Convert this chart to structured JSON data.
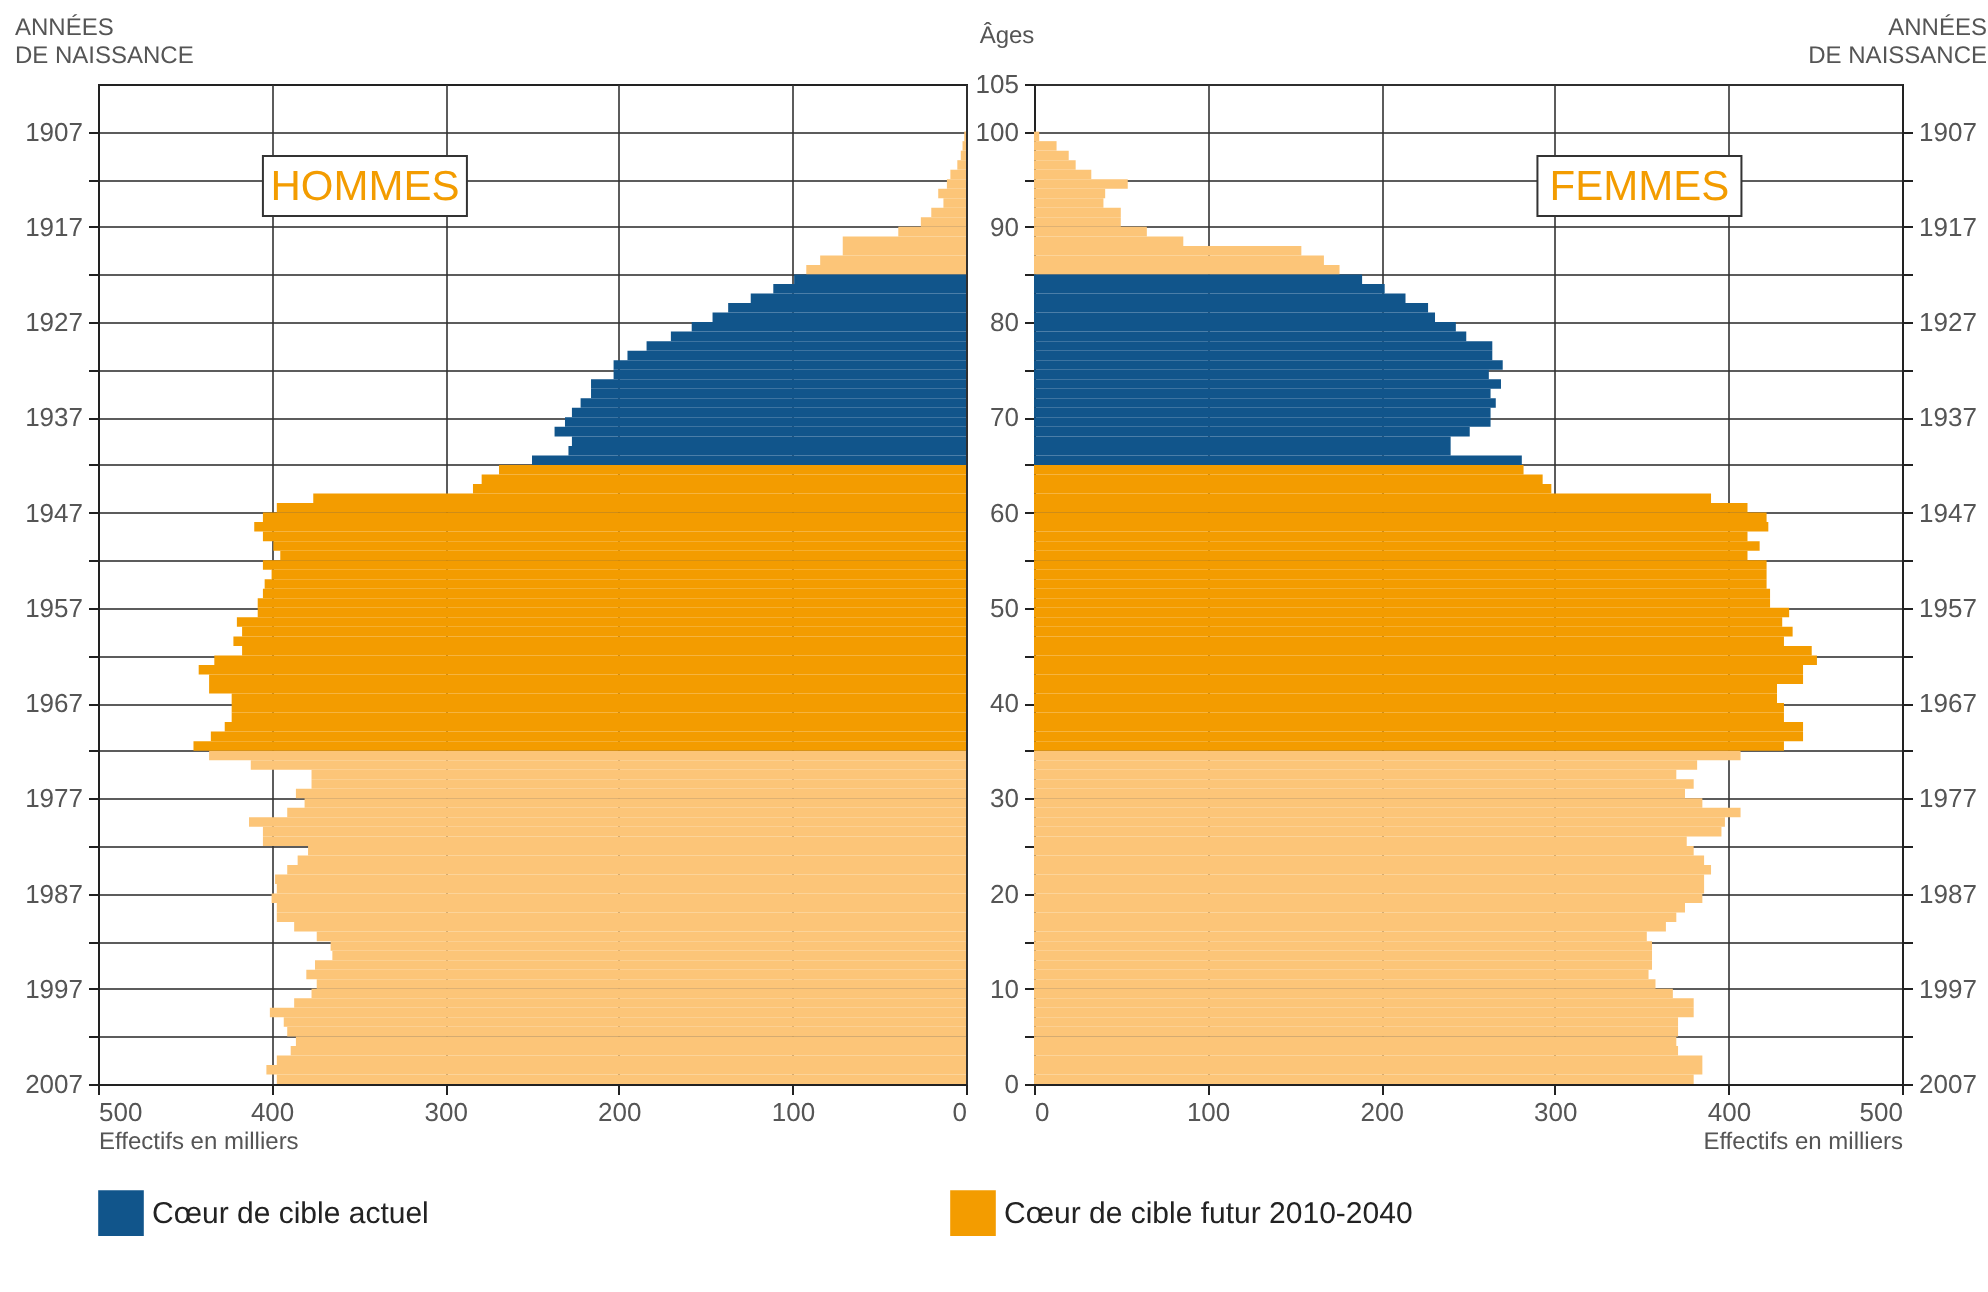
{
  "chart_data": [
    {
      "type": "bar",
      "orientation": "horizontal",
      "annotations": [
        "HOMMES"
      ],
      "xlabel": "Effectifs en milliers",
      "ylabel": "ANNÉES DE NAISSANCE",
      "xlim": [
        500,
        0
      ],
      "xticks": [
        500,
        400,
        300,
        200,
        100,
        0
      ],
      "ylim": [
        2007,
        1902
      ],
      "yticks": [
        2007,
        {
          "value": 2002,
          "label": null
        },
        1997,
        {
          "value": 1992,
          "label": null
        },
        1987,
        {
          "value": 1982,
          "label": null
        },
        1977,
        {
          "value": 1972,
          "label": null
        },
        1967,
        {
          "value": 1962,
          "label": null
        },
        1957,
        {
          "value": 1952,
          "label": null
        },
        1947,
        {
          "value": 1942,
          "label": null
        },
        1937,
        {
          "value": 1932,
          "label": null
        },
        1927,
        {
          "value": 1922,
          "label": null
        },
        1917,
        {
          "value": 1912,
          "label": null
        },
        1907
      ],
      "grid": true,
      "legend": "bottom",
      "x": [
        2006.5,
        2005.5,
        2004.5,
        2003.5,
        2002.5,
        2001.5,
        2000.5,
        1999.5,
        1998.5,
        1997.5,
        1996.5,
        1995.5,
        1994.5,
        1993.5,
        1992.5,
        1991.5,
        1990.5,
        1989.5,
        1988.5,
        1987.5,
        1986.5,
        1985.5,
        1984.5,
        1983.5,
        1982.5,
        1981.5,
        1980.5,
        1979.5,
        1978.5,
        1977.5,
        1976.5,
        1975.5,
        1974.5,
        1973.5,
        1972.5,
        1971.5,
        1970.5,
        1969.5,
        1968.5,
        1967.5,
        1966.5,
        1965.5,
        1964.5,
        1963.5,
        1962.5,
        1961.5,
        1960.5,
        1959.5,
        1958.5,
        1957.5,
        1956.5,
        1955.5,
        1954.5,
        1953.5,
        1952.5,
        1951.5,
        1950.5,
        1949.5,
        1948.5,
        1947.5,
        1946.5,
        1945.5,
        1944.5,
        1943.5,
        1942.5,
        1941.5,
        1940.5,
        1939.5,
        1938.5,
        1937.5,
        1936.5,
        1935.5,
        1934.5,
        1933.5,
        1932.5,
        1931.5,
        1930.5,
        1929.5,
        1928.5,
        1927.5,
        1926.5,
        1925.5,
        1924.5,
        1923.5,
        1922.5,
        1921.5,
        1920.5,
        1919.5,
        1918.5,
        1917.5,
        1916.5,
        1915.5,
        1914.5,
        1913.5,
        1912.5,
        1911.5,
        1910.5,
        1909.5,
        1908.5,
        1907.5
      ],
      "series": [
        {
          "color": "#fcc578",
          "values": [
            397,
            403,
            397,
            389,
            386,
            391,
            393,
            401,
            387,
            377,
            374,
            380,
            375,
            365,
            366,
            374,
            387,
            397,
            397,
            400,
            397,
            398,
            391,
            385,
            379,
            405,
            405,
            413,
            391,
            381,
            386,
            377,
            377,
            412,
            436,
            null,
            null,
            null,
            null,
            null,
            null,
            null,
            null,
            null,
            null,
            null,
            null,
            null,
            null,
            null,
            null,
            null,
            null,
            null,
            null,
            null,
            null,
            null,
            null,
            null,
            null,
            null,
            null,
            null,
            null,
            null,
            null,
            null,
            null,
            null,
            null,
            null,
            null,
            null,
            null,
            null,
            null,
            null,
            null,
            null,
            null,
            null,
            null,
            null,
            null,
            92,
            84,
            71,
            71,
            39,
            26,
            20,
            13,
            16,
            11,
            9,
            5,
            3,
            2,
            1
          ]
        },
        {
          "name": "Cœur de cible actuel",
          "color": "#11558b",
          "values": [
            null,
            null,
            null,
            null,
            null,
            null,
            null,
            null,
            null,
            null,
            null,
            null,
            null,
            null,
            null,
            null,
            null,
            null,
            null,
            null,
            null,
            null,
            null,
            null,
            null,
            null,
            null,
            null,
            null,
            null,
            null,
            null,
            null,
            null,
            null,
            null,
            null,
            null,
            null,
            null,
            null,
            null,
            null,
            null,
            null,
            null,
            null,
            null,
            null,
            null,
            null,
            null,
            null,
            null,
            null,
            null,
            null,
            null,
            null,
            null,
            null,
            null,
            null,
            null,
            null,
            250,
            229,
            227,
            237,
            231,
            227,
            222,
            216,
            216,
            203,
            203,
            195,
            184,
            170,
            158,
            146,
            137,
            124,
            111,
            99,
            null,
            null,
            null,
            null,
            null,
            null,
            null,
            null,
            null,
            null,
            null,
            null,
            null,
            null,
            null
          ]
        },
        {
          "name": "Cœur de cible futur 2010-2040",
          "color": "#f39c00",
          "values": [
            null,
            null,
            null,
            null,
            null,
            null,
            null,
            null,
            null,
            null,
            null,
            null,
            null,
            null,
            null,
            null,
            null,
            null,
            null,
            null,
            null,
            null,
            null,
            null,
            null,
            null,
            null,
            null,
            null,
            null,
            null,
            null,
            null,
            null,
            null,
            445,
            435,
            427,
            423,
            423,
            423,
            436,
            436,
            442,
            433,
            417,
            422,
            417,
            420,
            408,
            408,
            405,
            404,
            400,
            405,
            395,
            399,
            405,
            410,
            405,
            397,
            376,
            284,
            279,
            269,
            null,
            null,
            null,
            null,
            null,
            null,
            null,
            null,
            null,
            null,
            null,
            null,
            null,
            null,
            null,
            null,
            null,
            null,
            null,
            null,
            null,
            null,
            null,
            null,
            null,
            null,
            null,
            null,
            null,
            null,
            null,
            null,
            null,
            null,
            null
          ]
        }
      ]
    },
    {
      "type": "bar",
      "orientation": "horizontal",
      "annotations": [
        "FEMMES"
      ],
      "xlabel": "Effectifs en milliers",
      "ylabel": "Âges",
      "y2label": "ANNÉES DE NAISSANCE",
      "xlim": [
        0,
        500
      ],
      "xticks": [
        0,
        100,
        200,
        300,
        400,
        500
      ],
      "ylim": [
        0,
        105
      ],
      "yticks": [
        0,
        {
          "value": 5,
          "label": null
        },
        10,
        {
          "value": 15,
          "label": null
        },
        20,
        {
          "value": 25,
          "label": null
        },
        30,
        {
          "value": 35,
          "label": null
        },
        40,
        {
          "value": 45,
          "label": null
        },
        50,
        {
          "value": 55,
          "label": null
        },
        60,
        {
          "value": 65,
          "label": null
        },
        70,
        {
          "value": 75,
          "label": null
        },
        80,
        {
          "value": 85,
          "label": null
        },
        90,
        {
          "value": 95,
          "label": null
        },
        100,
        105
      ],
      "y2lim": [
        2007,
        1902
      ],
      "y2ticks": [
        2007,
        {
          "value": 2002,
          "label": null
        },
        1997,
        {
          "value": 1992,
          "label": null
        },
        1987,
        {
          "value": 1982,
          "label": null
        },
        1977,
        {
          "value": 1972,
          "label": null
        },
        1967,
        {
          "value": 1962,
          "label": null
        },
        1957,
        {
          "value": 1952,
          "label": null
        },
        1947,
        {
          "value": 1942,
          "label": null
        },
        1937,
        {
          "value": 1932,
          "label": null
        },
        1927,
        {
          "value": 1922,
          "label": null
        },
        1917,
        {
          "value": 1912,
          "label": null
        },
        1907
      ],
      "grid": true,
      "legend": "bottom",
      "x": [
        0.5,
        1.5,
        2.5,
        3.5,
        4.5,
        5.5,
        6.5,
        7.5,
        8.5,
        9.5,
        10.5,
        11.5,
        12.5,
        13.5,
        14.5,
        15.5,
        16.5,
        17.5,
        18.5,
        19.5,
        20.5,
        21.5,
        22.5,
        23.5,
        24.5,
        25.5,
        26.5,
        27.5,
        28.5,
        29.5,
        30.5,
        31.5,
        32.5,
        33.5,
        34.5,
        35.5,
        36.5,
        37.5,
        38.5,
        39.5,
        40.5,
        41.5,
        42.5,
        43.5,
        44.5,
        45.5,
        46.5,
        47.5,
        48.5,
        49.5,
        50.5,
        51.5,
        52.5,
        53.5,
        54.5,
        55.5,
        56.5,
        57.5,
        58.5,
        59.5,
        60.5,
        61.5,
        62.5,
        63.5,
        64.5,
        65.5,
        66.5,
        67.5,
        68.5,
        69.5,
        70.5,
        71.5,
        72.5,
        73.5,
        74.5,
        75.5,
        76.5,
        77.5,
        78.5,
        79.5,
        80.5,
        81.5,
        82.5,
        83.5,
        84.5,
        85.5,
        86.5,
        87.5,
        88.5,
        89.5,
        90.5,
        91.5,
        92.5,
        93.5,
        94.5,
        95.5,
        96.5,
        97.5,
        98.5,
        99.5
      ],
      "series": [
        {
          "color": "#fcc578",
          "values": [
            380,
            385,
            385,
            371,
            370,
            371,
            371,
            380,
            380,
            368,
            358,
            354,
            356,
            356,
            356,
            353,
            364,
            370,
            375,
            385,
            386,
            386,
            390,
            386,
            380,
            376,
            396,
            398,
            407,
            385,
            375,
            380,
            370,
            382,
            407,
            null,
            null,
            null,
            null,
            null,
            null,
            null,
            null,
            null,
            null,
            null,
            null,
            null,
            null,
            null,
            null,
            null,
            null,
            null,
            null,
            null,
            null,
            null,
            null,
            null,
            null,
            null,
            null,
            null,
            null,
            null,
            null,
            null,
            null,
            null,
            null,
            null,
            null,
            null,
            null,
            null,
            null,
            null,
            null,
            null,
            null,
            null,
            null,
            null,
            null,
            176,
            167,
            154,
            86,
            65,
            50,
            50,
            40,
            41,
            54,
            33,
            24,
            20,
            13,
            3
          ]
        },
        {
          "name": "Cœur de cible actuel",
          "color": "#11558b",
          "values": [
            null,
            null,
            null,
            null,
            null,
            null,
            null,
            null,
            null,
            null,
            null,
            null,
            null,
            null,
            null,
            null,
            null,
            null,
            null,
            null,
            null,
            null,
            null,
            null,
            null,
            null,
            null,
            null,
            null,
            null,
            null,
            null,
            null,
            null,
            null,
            null,
            null,
            null,
            null,
            null,
            null,
            null,
            null,
            null,
            null,
            null,
            null,
            null,
            null,
            null,
            null,
            null,
            null,
            null,
            null,
            null,
            null,
            null,
            null,
            null,
            null,
            null,
            null,
            null,
            null,
            281,
            240,
            240,
            251,
            263,
            263,
            266,
            263,
            269,
            262,
            270,
            264,
            264,
            249,
            243,
            231,
            227,
            214,
            202,
            189,
            null,
            null,
            null,
            null,
            null,
            null,
            null,
            null,
            null,
            null,
            null,
            null,
            null,
            null,
            null
          ]
        },
        {
          "name": "Cœur de cible futur 2010-2040",
          "color": "#f39c00",
          "values": [
            null,
            null,
            null,
            null,
            null,
            null,
            null,
            null,
            null,
            null,
            null,
            null,
            null,
            null,
            null,
            null,
            null,
            null,
            null,
            null,
            null,
            null,
            null,
            null,
            null,
            null,
            null,
            null,
            null,
            null,
            null,
            null,
            null,
            null,
            null,
            432,
            443,
            443,
            432,
            432,
            428,
            428,
            443,
            443,
            451,
            448,
            432,
            437,
            431,
            435,
            424,
            424,
            422,
            422,
            422,
            411,
            418,
            411,
            423,
            422,
            411,
            390,
            298,
            293,
            282,
            null,
            null,
            null,
            null,
            null,
            null,
            null,
            null,
            null,
            null,
            null,
            null,
            null,
            null,
            null,
            null,
            null,
            null,
            null,
            null,
            null,
            null,
            null,
            null,
            null,
            null,
            null,
            null,
            null,
            null,
            null,
            null,
            null,
            null,
            null
          ]
        }
      ]
    }
  ]
}
